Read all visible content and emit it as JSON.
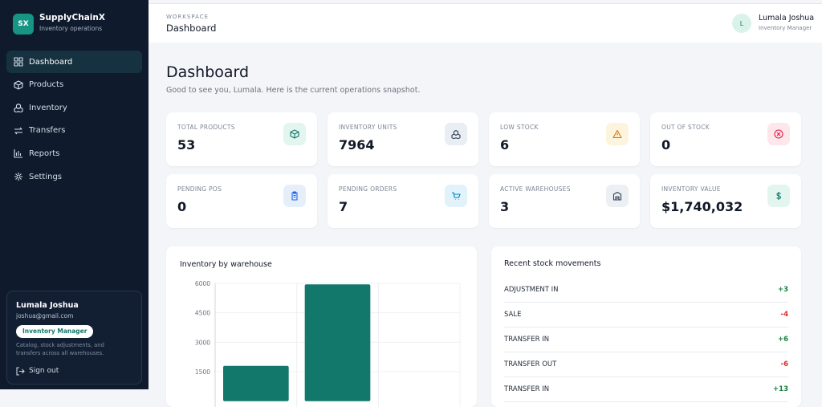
{
  "sidebar": {
    "brand": {
      "logo": "SX",
      "name": "SupplyChainX",
      "subtitle": "Inventory operations"
    },
    "nav": [
      "Dashboard",
      "Products",
      "Inventory",
      "Transfers",
      "Reports",
      "Settings"
    ],
    "user": {
      "name": "Lumala Joshua",
      "email": "joshua@gmail.com",
      "role": "Inventory Manager",
      "description": "Catalog, stock adjustments, and transfers across all warehouses.",
      "sign_out": "Sign out"
    }
  },
  "header": {
    "eyebrow": "WORKSPACE",
    "title": "Dashboard",
    "user": {
      "initial": "L",
      "name": "Lumala Joshua",
      "role": "Inventory Manager"
    }
  },
  "page": {
    "title": "Dashboard",
    "subtitle": "Good to see you, Lumala. Here is the current operations snapshot."
  },
  "stats": [
    {
      "label": "TOTAL PRODUCTS",
      "value": "53"
    },
    {
      "label": "INVENTORY UNITS",
      "value": "7964"
    },
    {
      "label": "LOW STOCK",
      "value": "6"
    },
    {
      "label": "OUT OF STOCK",
      "value": "0"
    },
    {
      "label": "PENDING POS",
      "value": "0"
    },
    {
      "label": "PENDING ORDERS",
      "value": "7"
    },
    {
      "label": "ACTIVE WAREHOUSES",
      "value": "3"
    },
    {
      "label": "INVENTORY VALUE",
      "value": "$1,740,032"
    }
  ],
  "chart_data": {
    "type": "bar",
    "title": "Inventory by warehouse",
    "categories": [
      null,
      null,
      null
    ],
    "values": [
      1800,
      5950,
      0
    ],
    "color": "#12786b",
    "ylim": [
      0,
      6000
    ],
    "yticks": [
      1500,
      3000,
      4500,
      6000
    ],
    "grid": true
  },
  "movements": {
    "title": "Recent stock movements",
    "rows": [
      [
        "ADJUSTMENT IN",
        "+3"
      ],
      [
        "SALE",
        "-4"
      ],
      [
        "TRANSFER IN",
        "+6"
      ],
      [
        "TRANSFER OUT",
        "-6"
      ],
      [
        "TRANSFER IN",
        "+13"
      ]
    ]
  }
}
